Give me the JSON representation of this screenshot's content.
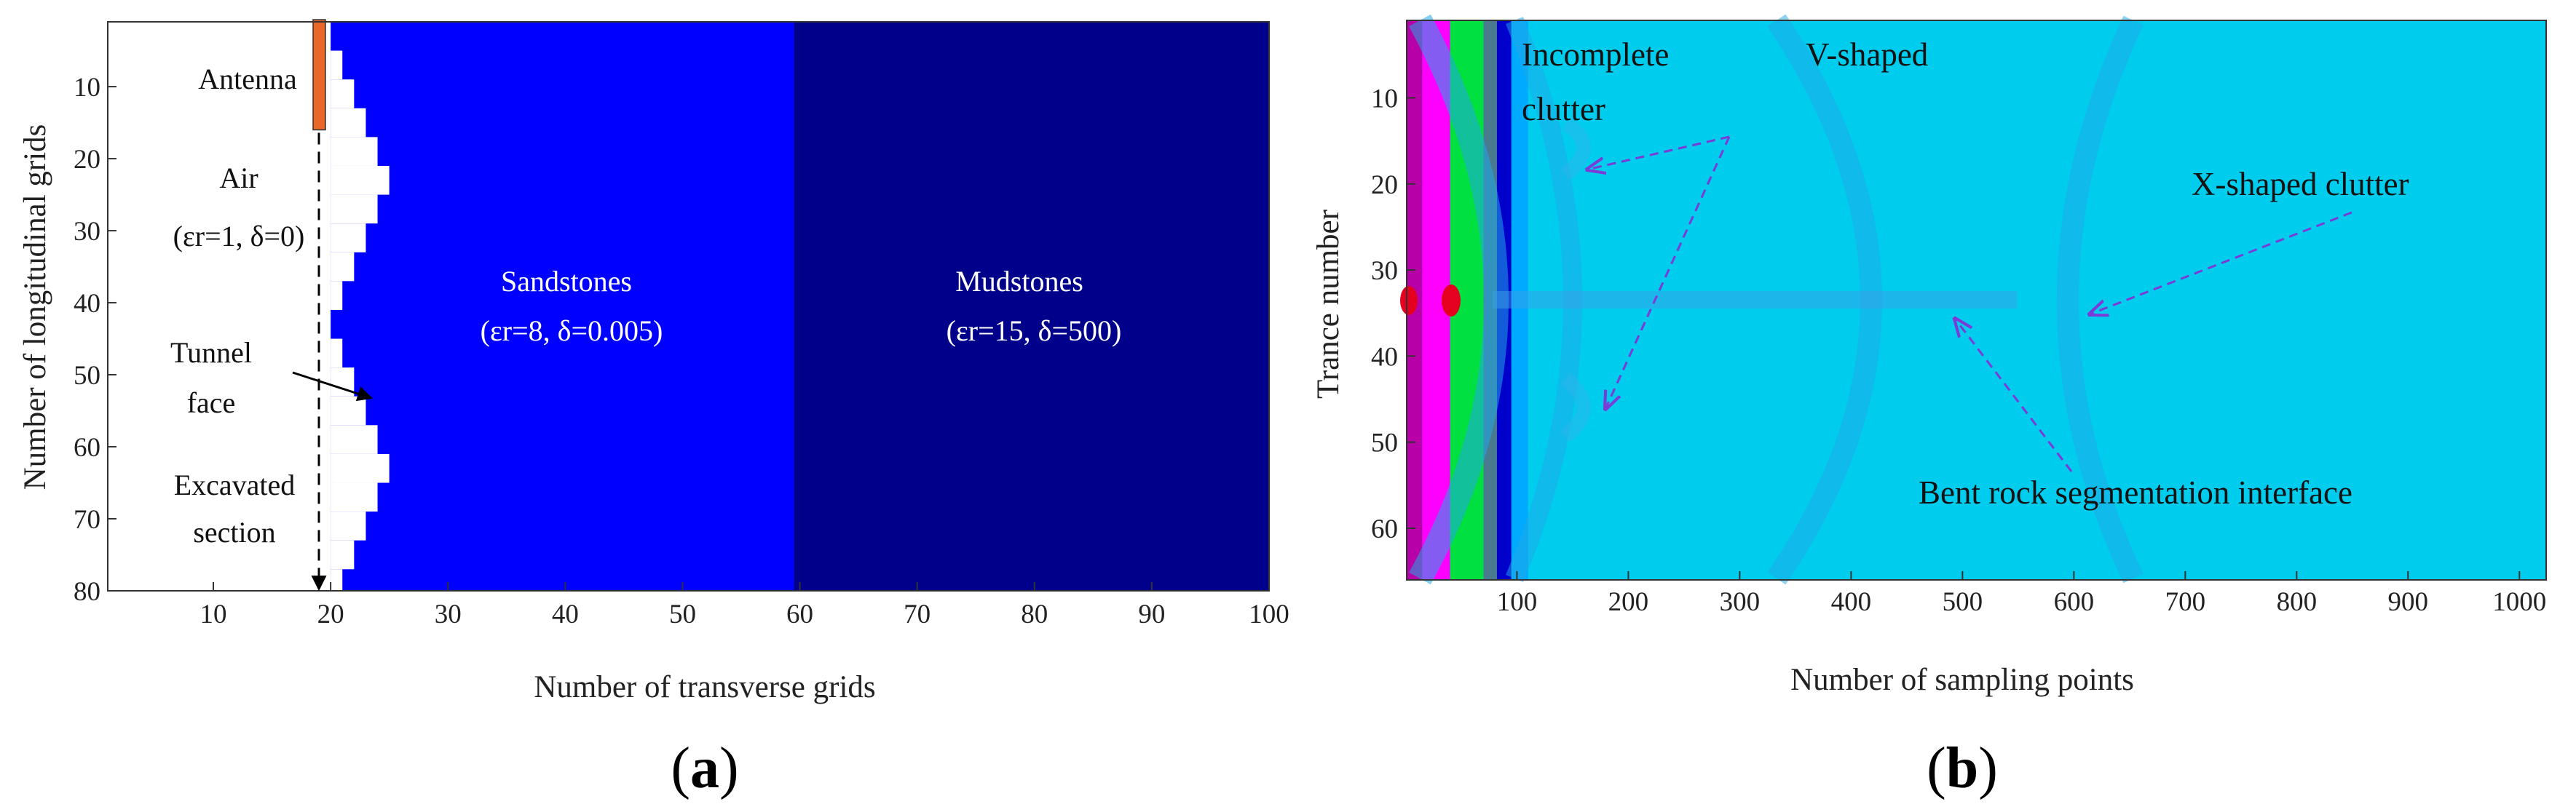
{
  "chart_data": [
    {
      "type": "heatmap",
      "panel_label": {
        "open": "(",
        "letter": "a",
        "close": ")"
      },
      "xlabel": "Number of transverse grids",
      "ylabel": "Number of longitudinal grids",
      "xlim": [
        1,
        100
      ],
      "ylim": [
        80,
        1
      ],
      "x_ticks": [
        10,
        20,
        30,
        40,
        50,
        60,
        70,
        80,
        90,
        100
      ],
      "y_ticks": [
        10,
        20,
        30,
        40,
        50,
        60,
        70,
        80
      ],
      "regions": [
        {
          "name": "Air",
          "x_from": 1,
          "x_to": 20,
          "color": "#ffffff"
        },
        {
          "name": "Sandstones",
          "x_from": 20,
          "x_to": 59.5,
          "color": "#0000ff"
        },
        {
          "name": "Mudstones",
          "x_from": 59.5,
          "x_to": 100,
          "color": "#00008b"
        }
      ],
      "tunnel_face_profile": {
        "rows": [
          1,
          5,
          9,
          13,
          17,
          21,
          25,
          29,
          33,
          37,
          41,
          45,
          49,
          53,
          57,
          61,
          65,
          69,
          73,
          77,
          80
        ],
        "col": [
          20,
          21,
          22,
          23,
          24,
          25,
          24,
          23,
          22,
          21,
          20,
          21,
          22,
          23,
          24,
          25,
          24,
          23,
          22,
          21,
          20
        ]
      },
      "antenna": {
        "x": 19,
        "y_from": 0,
        "y_to": 16,
        "color": "#e8682a"
      },
      "scan_arrow": {
        "x": 19,
        "y_from": 1,
        "y_to": 80
      },
      "annotations": {
        "antenna": "Antenna",
        "air": "Air",
        "air_params": "(εr=1, δ=0)",
        "tunnel_1": "Tunnel",
        "tunnel_2": "face",
        "excavated_1": "Excavated",
        "excavated_2": "section",
        "sandstones": "Sandstones",
        "sandstones_params": "(εr=8, δ=0.005)",
        "mudstones": "Mudstones",
        "mudstones_params": "(εr=15, δ=500)"
      }
    },
    {
      "type": "heatmap",
      "panel_label": {
        "open": "(",
        "letter": "b",
        "close": ")"
      },
      "xlabel": "Number of sampling points",
      "ylabel": "Trance number",
      "xlim": [
        1,
        1024
      ],
      "ylim": [
        66,
        1
      ],
      "x_ticks": [
        100,
        200,
        300,
        400,
        500,
        600,
        700,
        800,
        900,
        1000
      ],
      "y_ticks": [
        10,
        20,
        30,
        40,
        50,
        60
      ],
      "background_color": "#00ccee",
      "direct_wave_bands": [
        {
          "from": 1,
          "to": 15,
          "color": "#b800a8"
        },
        {
          "from": 15,
          "to": 40,
          "color": "#ff00ff"
        },
        {
          "from": 40,
          "to": 70,
          "color": "#00e040"
        },
        {
          "from": 70,
          "to": 82,
          "color": "#4a7a90"
        },
        {
          "from": 82,
          "to": 95,
          "color": "#0000cc"
        },
        {
          "from": 95,
          "to": 110,
          "color": "#00aaff"
        }
      ],
      "annotations": {
        "incomplete": "Incomplete",
        "vshaped": "V-shaped",
        "clutter": "clutter",
        "xshaped": "X-shaped clutter",
        "bent": "Bent rock segmentation interface"
      }
    }
  ]
}
